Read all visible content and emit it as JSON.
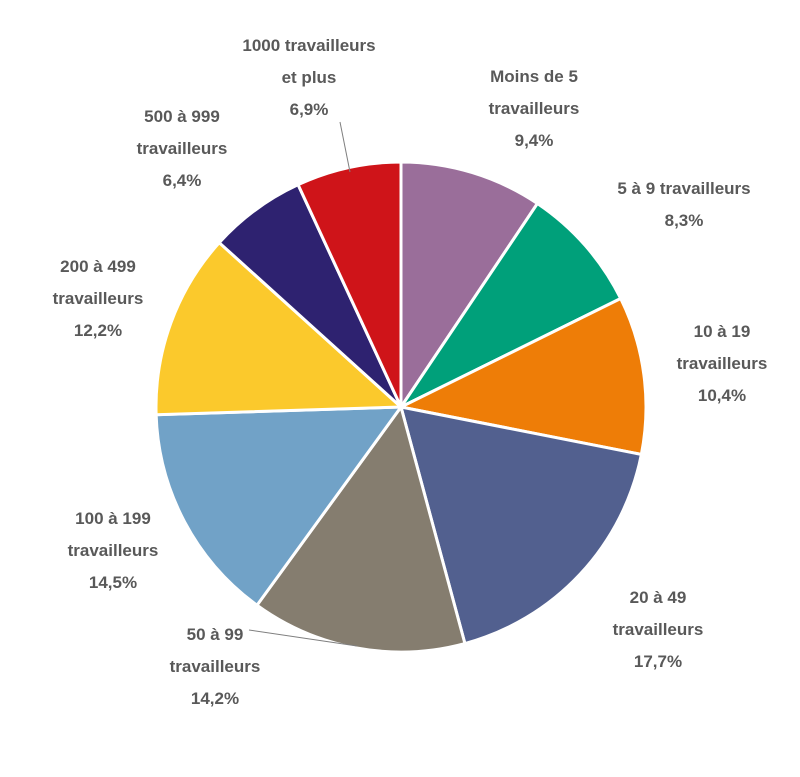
{
  "chart_data": {
    "type": "pie",
    "start_angle_deg": 0,
    "direction": "clockwise",
    "slices": [
      {
        "label_lines": [
          "Moins de 5",
          "travailleurs"
        ],
        "value": 9.4,
        "value_label": "9,4%",
        "color": "#9a6e9a"
      },
      {
        "label_lines": [
          "5 à 9 travailleurs"
        ],
        "value": 8.3,
        "value_label": "8,3%",
        "color": "#00a07a"
      },
      {
        "label_lines": [
          "10 à 19",
          "travailleurs"
        ],
        "value": 10.4,
        "value_label": "10,4%",
        "color": "#ee7d07"
      },
      {
        "label_lines": [
          "20 à 49",
          "travailleurs"
        ],
        "value": 17.7,
        "value_label": "17,7%",
        "color": "#52608f"
      },
      {
        "label_lines": [
          "50 à 99",
          "travailleurs"
        ],
        "value": 14.2,
        "value_label": "14,2%",
        "color": "#857d6f"
      },
      {
        "label_lines": [
          "100 à 199",
          "travailleurs"
        ],
        "value": 14.5,
        "value_label": "14,5%",
        "color": "#71a2c7"
      },
      {
        "label_lines": [
          "200 à 499",
          "travailleurs"
        ],
        "value": 12.2,
        "value_label": "12,2%",
        "color": "#fbc92c"
      },
      {
        "label_lines": [
          "500 à 999",
          "travailleurs"
        ],
        "value": 6.4,
        "value_label": "6,4%",
        "color": "#2e2270"
      },
      {
        "label_lines": [
          "1000 travailleurs",
          "et plus"
        ],
        "value": 6.9,
        "value_label": "6,9%",
        "color": "#cf1419"
      }
    ],
    "legend": "none"
  }
}
